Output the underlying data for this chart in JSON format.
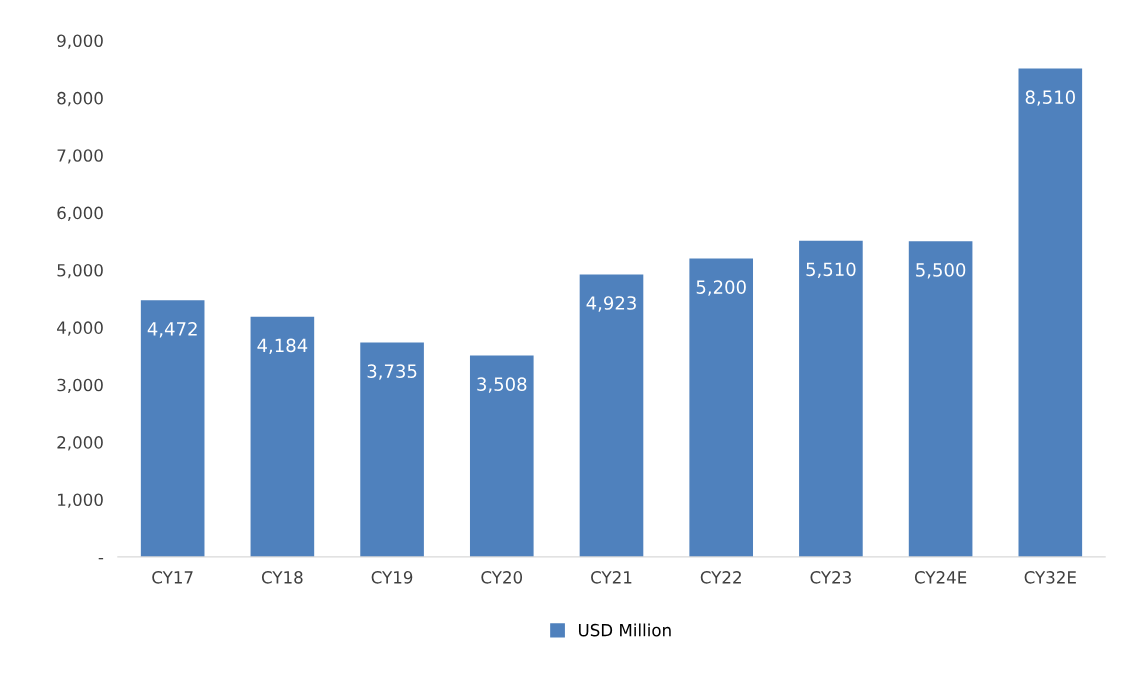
{
  "chart_data": {
    "type": "bar",
    "categories": [
      "CY17",
      "CY18",
      "CY19",
      "CY20",
      "CY21",
      "CY22",
      "CY23",
      "CY24E",
      "CY32E"
    ],
    "series": [
      {
        "name": "USD Million",
        "color": "#4f81bd",
        "values": [
          4472,
          4184,
          3735,
          3508,
          4923,
          5200,
          5510,
          5500,
          8510
        ]
      }
    ],
    "value_labels": [
      "4,472",
      "4,184",
      "3,735",
      "3,508",
      "4,923",
      "5,200",
      "5,510",
      "5,500",
      "8,510"
    ],
    "ylim": [
      0,
      9000
    ],
    "yticks": [
      {
        "value": 0,
        "label": "-"
      },
      {
        "value": 1000,
        "label": "1,000"
      },
      {
        "value": 2000,
        "label": "2,000"
      },
      {
        "value": 3000,
        "label": "3,000"
      },
      {
        "value": 4000,
        "label": "4,000"
      },
      {
        "value": 5000,
        "label": "5,000"
      },
      {
        "value": 6000,
        "label": "6,000"
      },
      {
        "value": 7000,
        "label": "7,000"
      },
      {
        "value": 8000,
        "label": "8,000"
      },
      {
        "value": 9000,
        "label": "9,000"
      }
    ],
    "grid": false,
    "legend": "bottom"
  }
}
